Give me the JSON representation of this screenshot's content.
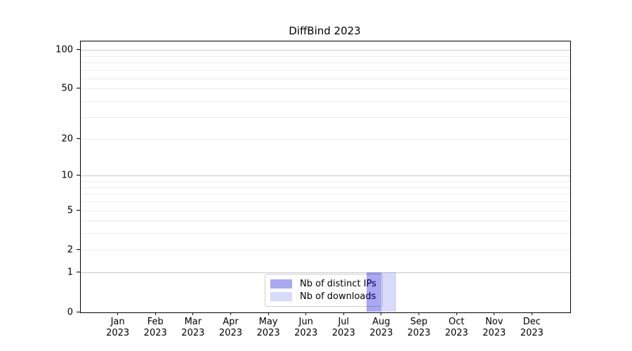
{
  "chart_data": {
    "type": "bar",
    "title": "DiffBind 2023",
    "categories": [
      "Jan",
      "Feb",
      "Mar",
      "Apr",
      "May",
      "Jun",
      "Jul",
      "Aug",
      "Sep",
      "Oct",
      "Nov",
      "Dec"
    ],
    "year_label": "2023",
    "series": [
      {
        "name": "Nb of distinct IPs",
        "color": "rgba(0,0,220,0.34)",
        "values": [
          0,
          0,
          0,
          0,
          0,
          0,
          0,
          1,
          0,
          0,
          0,
          0
        ]
      },
      {
        "name": "Nb of downloads",
        "color": "rgba(0,0,220,0.15)",
        "values": [
          0,
          0,
          0,
          0,
          0,
          0,
          0,
          1,
          0,
          0,
          0,
          0
        ]
      }
    ],
    "yscale": "log1p",
    "ylim": [
      0,
      117
    ],
    "yticks": [
      0,
      1,
      2,
      5,
      10,
      20,
      50,
      100
    ],
    "gridlines": {
      "emphasized": [
        1,
        10,
        100
      ],
      "light": [
        2,
        3,
        4,
        5,
        6,
        7,
        8,
        9,
        20,
        30,
        40,
        50,
        60,
        70,
        80,
        90
      ]
    },
    "grid_emphasized_color": "#c8c8c8",
    "grid_light_color": "#ededed",
    "axis_color": "#000000",
    "legend_position": "lower center",
    "xlabel": "",
    "ylabel": ""
  }
}
